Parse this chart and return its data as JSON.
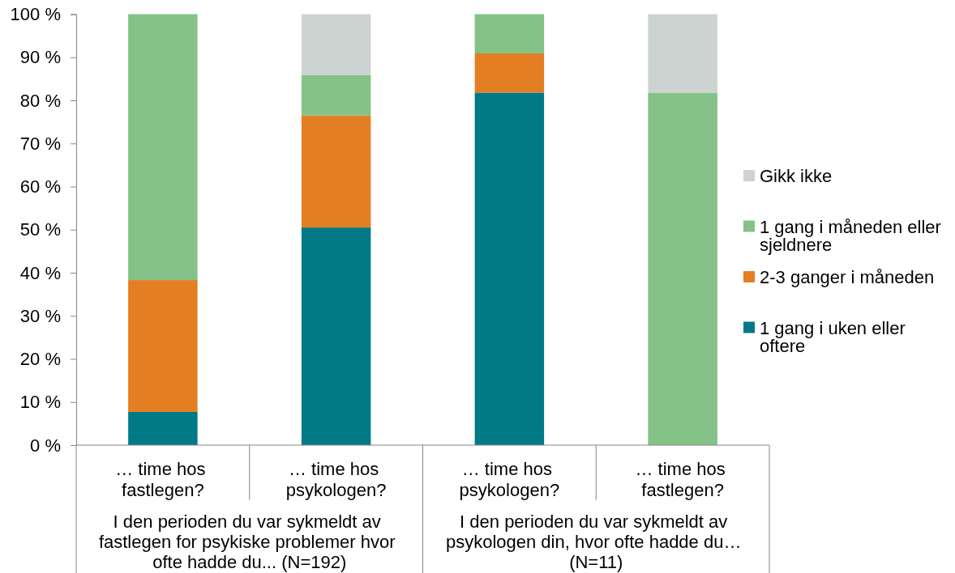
{
  "chart_data": {
    "type": "bar",
    "stacked": true,
    "categories": [
      "… time hos fastlegen?",
      "… time hos psykologen?",
      "… time hos psykologen?",
      "… time hos fastlegen?"
    ],
    "series": [
      {
        "name": "1 gang i uken eller oftere",
        "color": "#007a87",
        "values": [
          7.7,
          50.5,
          81.8,
          null
        ]
      },
      {
        "name": "2-3 ganger i måneden",
        "color": "#e47e23",
        "values": [
          30.6,
          26.0,
          9.1,
          null
        ]
      },
      {
        "name": "1 gang i måneden eller sjeldnere",
        "color": "#84c287",
        "values": [
          61.7,
          9.4,
          9.1,
          81.8
        ]
      },
      {
        "name": "Gikk ikke",
        "color": "#ccd3d0",
        "values": [
          null,
          14.1,
          null,
          18.2
        ]
      }
    ],
    "ylim": [
      0,
      100
    ],
    "yticks": [
      {
        "value": 0,
        "label": "0 %"
      },
      {
        "value": 10,
        "label": "10 %"
      },
      {
        "value": 20,
        "label": "20 %"
      },
      {
        "value": 30,
        "label": "30 %"
      },
      {
        "value": 40,
        "label": "40 %"
      },
      {
        "value": 50,
        "label": "50 %"
      },
      {
        "value": 60,
        "label": "60 %"
      },
      {
        "value": 70,
        "label": "70 %"
      },
      {
        "value": 80,
        "label": "80 %"
      },
      {
        "value": 90,
        "label": "90 %"
      },
      {
        "value": 100,
        "label": "100 %"
      }
    ],
    "legend": "right",
    "annotations": [
      "I den perioden du var sykmeldt av fastlegen for psykiske problemer hvor ofte hadde du...  (N=192)",
      "I den perioden du var sykmeldt av psykologen din, hvor ofte hadde du… (N=11)"
    ]
  }
}
